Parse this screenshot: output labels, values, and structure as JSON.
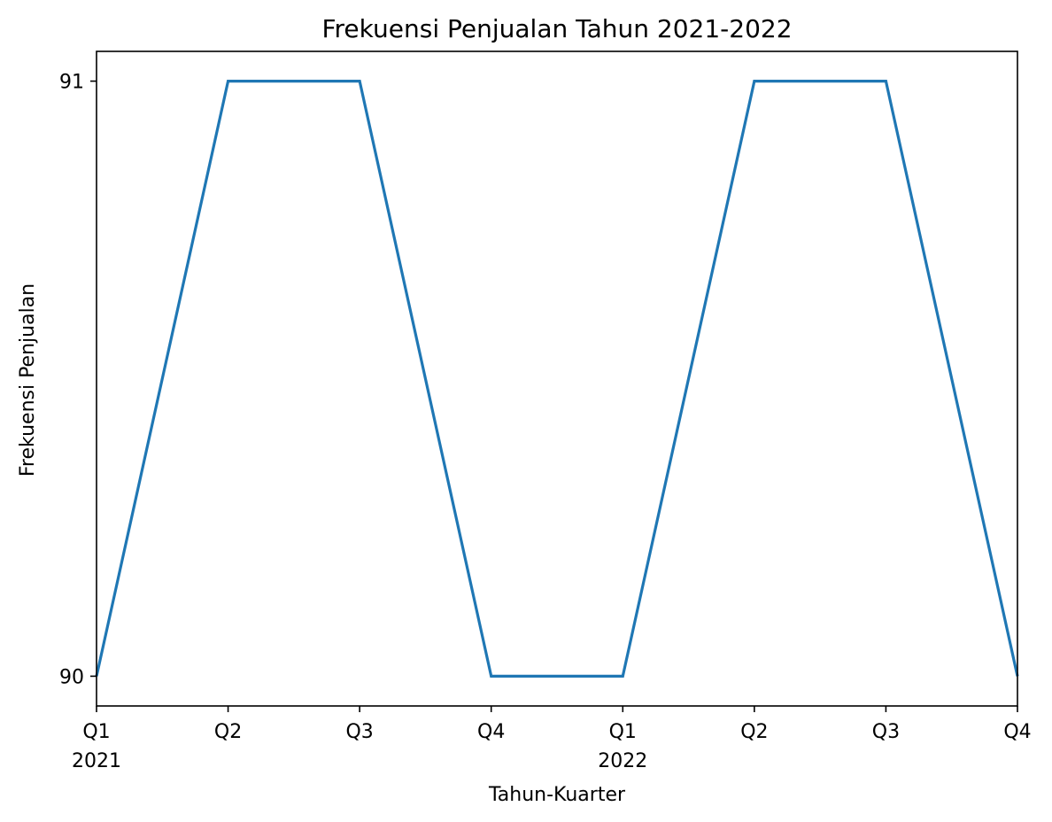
{
  "chart_data": {
    "type": "line",
    "title": "Frekuensi Penjualan Tahun 2021-2022",
    "xlabel": "Tahun-Kuarter",
    "ylabel": "Frekuensi Penjualan",
    "categories": [
      "2021 Q1",
      "2021 Q2",
      "2021 Q3",
      "2021 Q4",
      "2022 Q1",
      "2022 Q2",
      "2022 Q3",
      "2022 Q4"
    ],
    "x_tick_labels": [
      {
        "quarter": "Q1",
        "year": "2021"
      },
      {
        "quarter": "Q2",
        "year": ""
      },
      {
        "quarter": "Q3",
        "year": ""
      },
      {
        "quarter": "Q4",
        "year": ""
      },
      {
        "quarter": "Q1",
        "year": "2022"
      },
      {
        "quarter": "Q2",
        "year": ""
      },
      {
        "quarter": "Q3",
        "year": ""
      },
      {
        "quarter": "Q4",
        "year": ""
      }
    ],
    "series": [
      {
        "values": [
          90,
          91,
          91,
          90,
          90,
          91,
          91,
          90
        ],
        "color": "#1f77b4"
      }
    ],
    "yticks": [
      90,
      91
    ],
    "ylim": [
      89.95,
      91.05
    ],
    "grid": false
  }
}
